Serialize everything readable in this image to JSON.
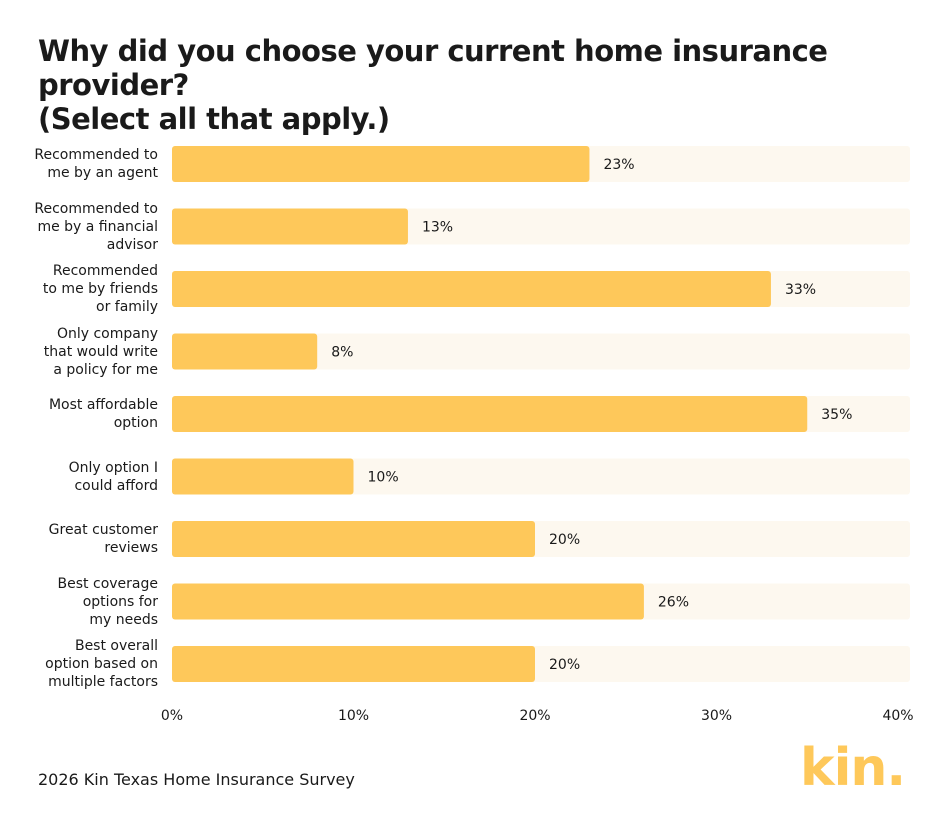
{
  "chart_data": {
    "type": "bar",
    "orientation": "horizontal",
    "title": "Why did you choose your current home insurance provider?\n(Select all that apply.)",
    "categories": [
      "Recommended to\nme by an agent",
      "Recommended to\nme by a financial\nadvisor",
      "Recommended\nto me by friends\nor family",
      "Only company\nthat would write\na policy for me",
      "Most affordable\noption",
      "Only option I\ncould afford",
      "Great customer\nreviews",
      "Best coverage\noptions for\nmy needs",
      "Best overall\noption based on\nmultiple factors"
    ],
    "values": [
      23,
      13,
      33,
      8,
      35,
      10,
      20,
      26,
      20
    ],
    "value_labels": [
      "23%",
      "13%",
      "33%",
      "8%",
      "35%",
      "10%",
      "20%",
      "26%",
      "20%"
    ],
    "color": "#fec85a",
    "xlim": [
      0,
      40
    ],
    "xticks": [
      {
        "value": 0,
        "label": "0%"
      },
      {
        "value": 10,
        "label": "10%"
      },
      {
        "value": 20,
        "label": "20%"
      },
      {
        "value": 30,
        "label": "30%"
      },
      {
        "value": 40,
        "label": "40%"
      }
    ],
    "source": "2026 Kin Texas Home Insurance Survey",
    "logo": "kin."
  }
}
